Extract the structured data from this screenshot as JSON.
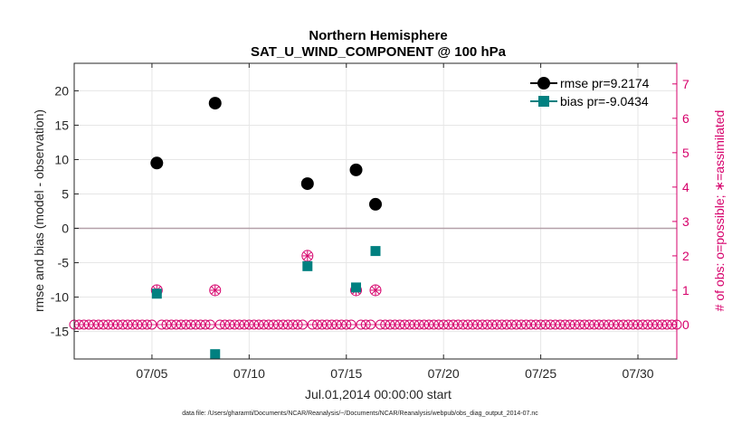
{
  "chart_data": {
    "type": "scatter",
    "title": "Northern Hemisphere",
    "subtitle": "SAT_U_WIND_COMPONENT @ 100 hPa",
    "xlabel": "Jul.01,2014 00:00:00 start",
    "ylabel": "rmse and bias (model - observation)",
    "ylabel_right": "# of obs: o=possible; ∗=assimilated",
    "footnote": "data file: /Users/gharamti/Documents/NCAR/Reanalysis/~/Documents/NCAR/Reanalysis/webpub/obs_diag_output_2014-07.nc",
    "xlim": [
      1,
      32
    ],
    "ylim": [
      -19,
      24
    ],
    "ylim_right": [
      -1,
      7.6
    ],
    "xticks": [
      5,
      10,
      15,
      20,
      25,
      30
    ],
    "xtick_labels": [
      "07/05",
      "07/10",
      "07/15",
      "07/20",
      "07/25",
      "07/30"
    ],
    "yticks": [
      -15,
      -10,
      -5,
      0,
      5,
      10,
      15,
      20
    ],
    "ytick_labels": [
      "-15",
      "-10",
      "-5",
      "0",
      "5",
      "10",
      "15",
      "20"
    ],
    "yticks_right": [
      0,
      1,
      2,
      3,
      4,
      5,
      6,
      7
    ],
    "ytick_labels_right": [
      "0",
      "1",
      "2",
      "3",
      "4",
      "5",
      "6",
      "7"
    ],
    "grid": true,
    "legend_position": "top-right",
    "series": [
      {
        "name": "rmse",
        "legend_label": "rmse pr=9.2174",
        "color": "#000000",
        "marker": "circle",
        "x": [
          5.25,
          8.25,
          13.0,
          15.5,
          16.5
        ],
        "values": [
          9.5,
          18.2,
          6.5,
          8.5,
          3.5
        ]
      },
      {
        "name": "bias",
        "legend_label": "bias pr=-9.0434",
        "color": "#008080",
        "marker": "square",
        "x": [
          5.25,
          8.25,
          13.0,
          15.5,
          16.5
        ],
        "values": [
          -9.5,
          -18.3,
          -5.5,
          -8.6,
          -3.3
        ]
      }
    ],
    "obs_counts": {
      "color": "#d6006b",
      "possible_nonzero": [
        {
          "x": 5.25,
          "count": 1
        },
        {
          "x": 8.25,
          "count": 1
        },
        {
          "x": 13.0,
          "count": 2
        },
        {
          "x": 15.5,
          "count": 1
        },
        {
          "x": 16.5,
          "count": 1
        }
      ],
      "assimilated_nonzero": [
        {
          "x": 5.25,
          "count": 1
        },
        {
          "x": 8.25,
          "count": 1
        },
        {
          "x": 13.0,
          "count": 2
        },
        {
          "x": 15.5,
          "count": 1
        },
        {
          "x": 16.5,
          "count": 1
        }
      ],
      "zero_count_interval_days": 0.25,
      "zero_count_range": [
        1,
        32
      ]
    }
  },
  "colors": {
    "axis": "#262626",
    "grid": "#e6e6e6",
    "zero_line": "#b3a0a8",
    "right_axis": "#d6006b",
    "rmse": "#000000",
    "bias": "#008080",
    "obs": "#d6006b"
  }
}
